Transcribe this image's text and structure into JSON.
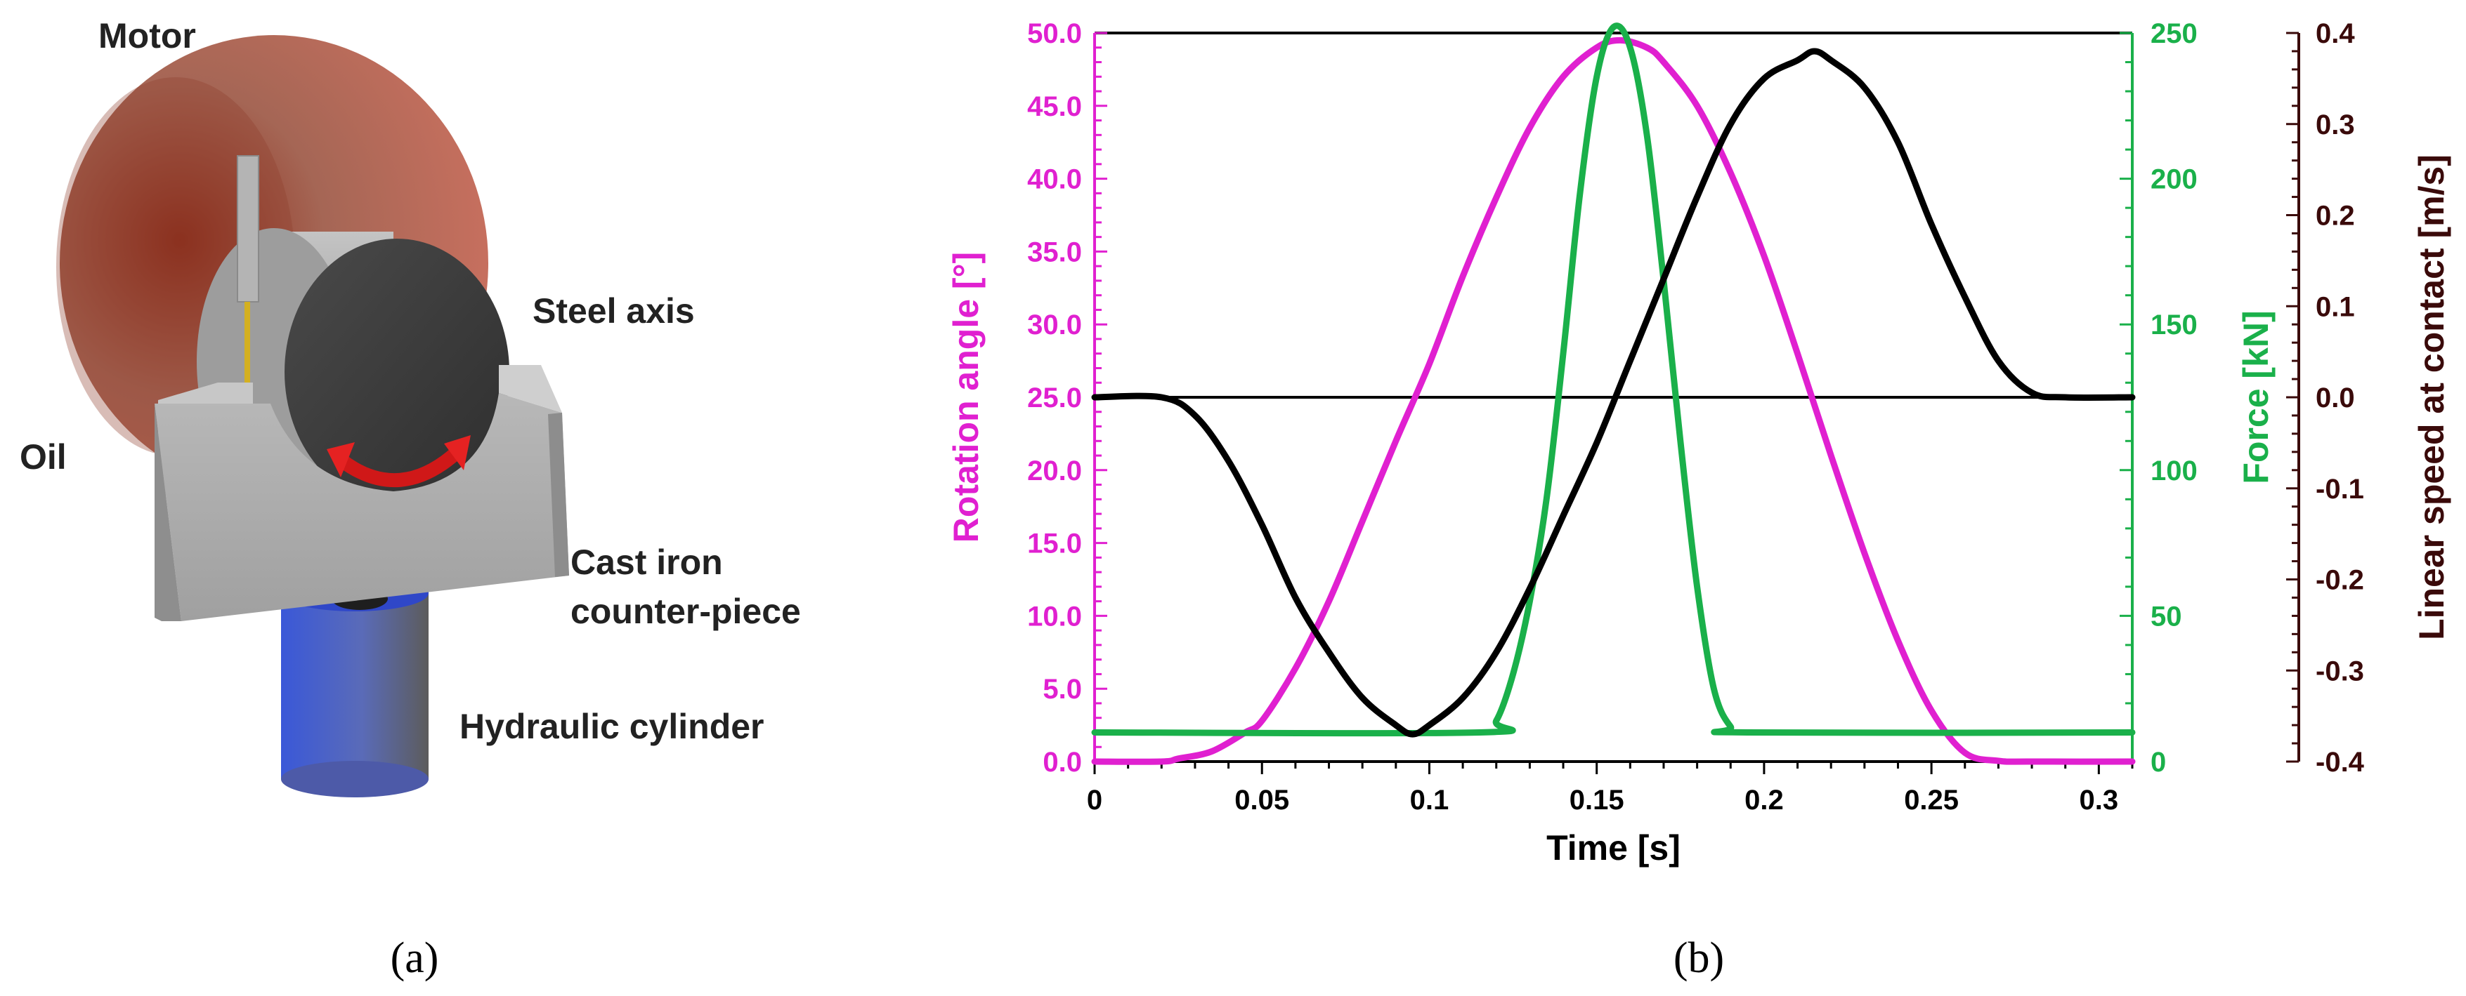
{
  "panel_a": {
    "label": "(a)",
    "labels": {
      "motor": "Motor",
      "steel_axis": "Steel axis",
      "oil": "Oil",
      "cast_iron_line1": "Cast iron",
      "cast_iron_line2": "counter-piece",
      "hydraulic": "Hydraulic cylinder"
    },
    "colors": {
      "motor": "#c9705f",
      "axis": "#9a9a9a",
      "axis_face": "#3c3c3c",
      "counterpiece": "#a9a9a9",
      "cylinder": "#4a5fc0",
      "arrow": "#d01818",
      "oil_needle": "#d4b020"
    }
  },
  "panel_b": {
    "label": "(b)",
    "chart_data": {
      "type": "line",
      "xlabel": "Time [s]",
      "x_ticks": [
        "0",
        "0.05",
        "0.1",
        "0.15",
        "0.2",
        "0.25",
        "0.3"
      ],
      "x_tick_values": [
        0,
        0.05,
        0.1,
        0.15,
        0.2,
        0.25,
        0.3
      ],
      "xlim": [
        0,
        0.31
      ],
      "axes": {
        "left": {
          "label": "Rotation angle [°]",
          "color": "#e020d0",
          "ylim": [
            0,
            50
          ],
          "ticks": [
            "0.0",
            "5.0",
            "10.0",
            "15.0",
            "20.0",
            "25.0",
            "30.0",
            "35.0",
            "40.0",
            "45.0",
            "50.0"
          ],
          "tick_values": [
            0,
            5,
            10,
            15,
            20,
            25,
            30,
            35,
            40,
            45,
            50
          ]
        },
        "right1": {
          "label": "Force [kN]",
          "color": "#1ab04a",
          "ylim": [
            0,
            250
          ],
          "ticks": [
            "0",
            "50",
            "100",
            "150",
            "200",
            "250"
          ],
          "tick_values": [
            0,
            50,
            100,
            150,
            200,
            250
          ]
        },
        "right2": {
          "label": "Linear speed at contact [m/s]",
          "color": "#3a0a0a",
          "ylim": [
            -0.4,
            0.4
          ],
          "ticks": [
            "0.4",
            "0.3",
            "0.2",
            "0.1",
            "0.0",
            "-0.1",
            "-0.2",
            "-0.3",
            "-0.4"
          ],
          "tick_values": [
            0.4,
            0.3,
            0.2,
            0.1,
            0.0,
            -0.1,
            -0.2,
            -0.3,
            -0.4
          ]
        }
      },
      "series": [
        {
          "name": "Rotation angle",
          "axis": "left",
          "color": "#e020d0",
          "x": [
            0,
            0.02,
            0.025,
            0.035,
            0.045,
            0.05,
            0.06,
            0.07,
            0.08,
            0.09,
            0.1,
            0.11,
            0.12,
            0.13,
            0.14,
            0.15,
            0.157,
            0.165,
            0.17,
            0.18,
            0.19,
            0.2,
            0.21,
            0.22,
            0.23,
            0.24,
            0.25,
            0.26,
            0.27,
            0.28,
            0.31
          ],
          "values": [
            0,
            0,
            0.2,
            0.7,
            2.0,
            2.8,
            6.4,
            11.0,
            16.5,
            22.0,
            27.3,
            33.3,
            38.7,
            43.5,
            47.0,
            49.0,
            49.5,
            49.0,
            48.0,
            45.0,
            40.4,
            34.7,
            28.0,
            21.0,
            14.3,
            8.3,
            3.5,
            0.6,
            0.05,
            0,
            0
          ]
        },
        {
          "name": "Force",
          "axis": "right1",
          "color": "#1ab04a",
          "x": [
            0,
            0.115,
            0.12,
            0.125,
            0.13,
            0.135,
            0.14,
            0.145,
            0.15,
            0.155,
            0.16,
            0.165,
            0.17,
            0.175,
            0.18,
            0.185,
            0.19,
            0.195,
            0.31
          ],
          "values": [
            10,
            10,
            14,
            30,
            55,
            90,
            140,
            195,
            235,
            252,
            245,
            215,
            165,
            110,
            60,
            25,
            12,
            10,
            10
          ]
        },
        {
          "name": "Linear speed at contact",
          "axis": "right2",
          "color": "#000000",
          "x": [
            0,
            0.02,
            0.03,
            0.04,
            0.05,
            0.06,
            0.07,
            0.08,
            0.09,
            0.095,
            0.1,
            0.11,
            0.12,
            0.13,
            0.14,
            0.15,
            0.16,
            0.17,
            0.18,
            0.19,
            0.2,
            0.21,
            0.215,
            0.22,
            0.23,
            0.24,
            0.25,
            0.26,
            0.27,
            0.28,
            0.29,
            0.31
          ],
          "values": [
            0,
            0,
            -0.02,
            -0.07,
            -0.14,
            -0.22,
            -0.28,
            -0.33,
            -0.36,
            -0.37,
            -0.36,
            -0.33,
            -0.28,
            -0.21,
            -0.13,
            -0.05,
            0.04,
            0.13,
            0.22,
            0.3,
            0.35,
            0.37,
            0.38,
            0.37,
            0.34,
            0.28,
            0.19,
            0.11,
            0.04,
            0.005,
            0,
            0
          ]
        }
      ],
      "reference_lines": [
        {
          "axis": "left",
          "value": 25.0,
          "color": "#000000"
        },
        {
          "axis": "left",
          "value": 50.0,
          "color": "#000000"
        }
      ]
    }
  }
}
